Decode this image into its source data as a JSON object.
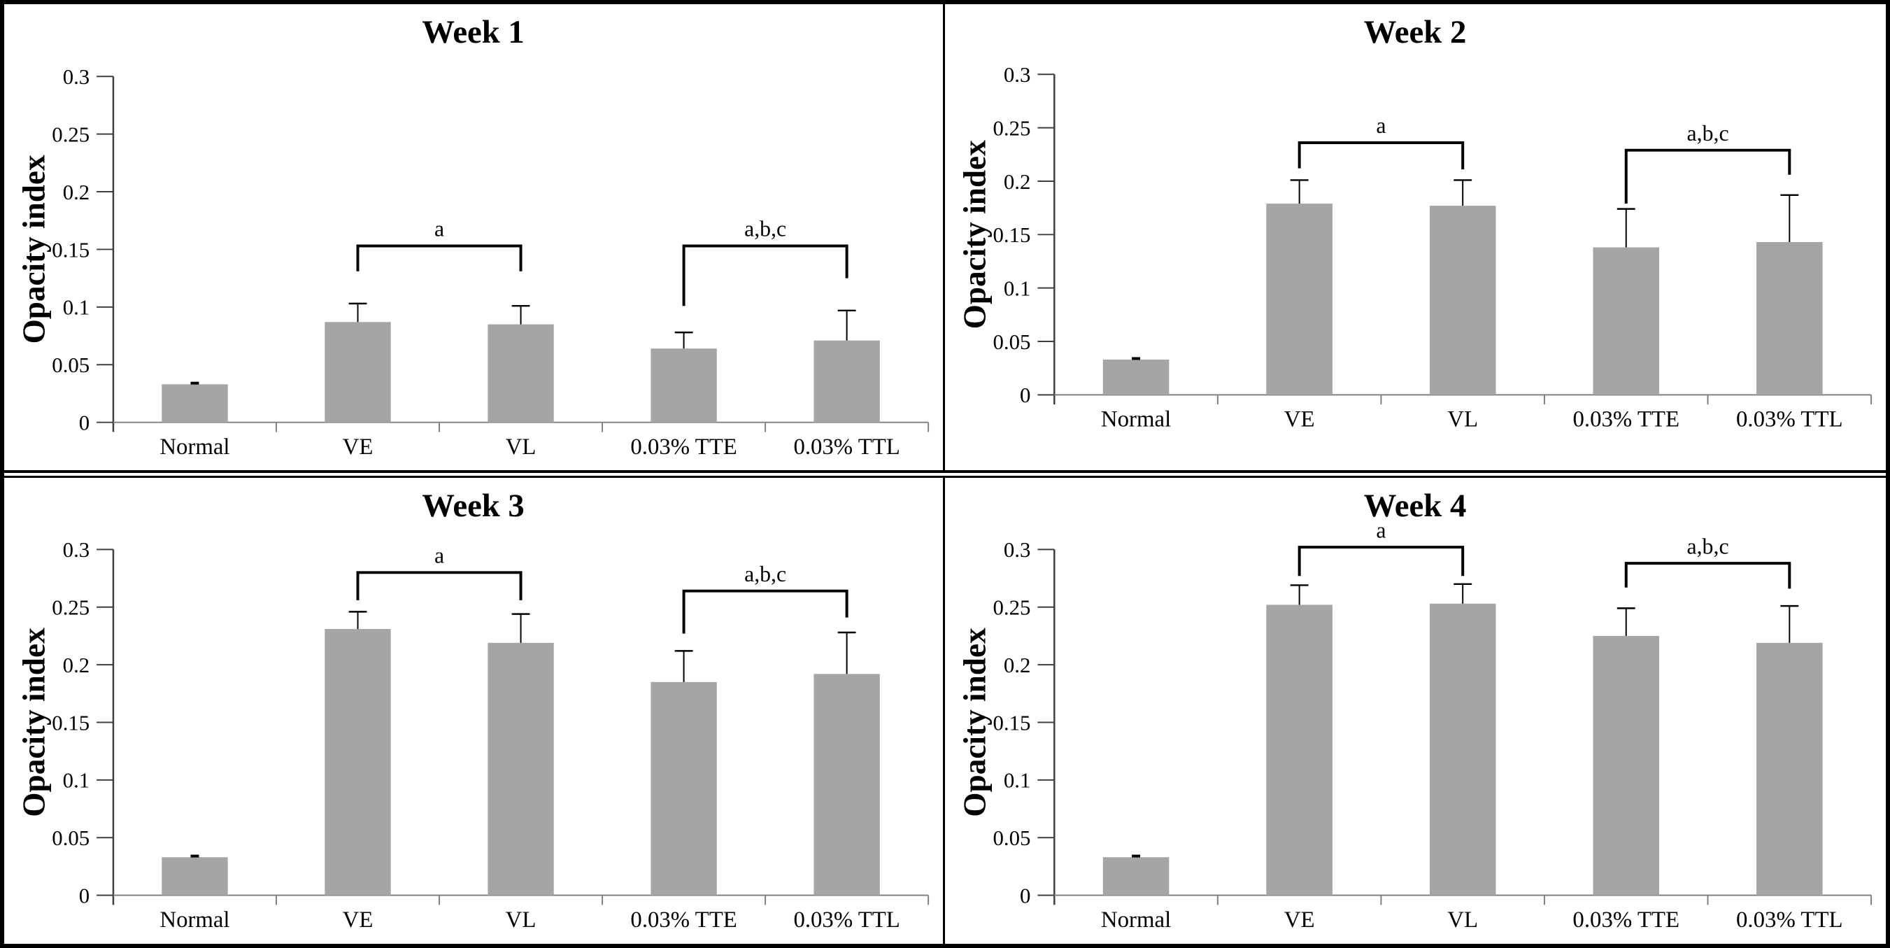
{
  "figure": {
    "background": "#ffffff",
    "frame_color": "#000000",
    "bar_color": "#a5a5a5",
    "x_axis_color": "#808080",
    "y_axis_color": "#3f3f3f",
    "tick_color": "#3f3f3f",
    "error_bar_color": "#000000",
    "bracket_color": "#000000",
    "text_color": "#000000"
  },
  "chart_data": [
    {
      "type": "bar",
      "title": "Week 1",
      "xlabel": "",
      "ylabel": "Opacity index",
      "categories": [
        "Normal",
        "VE",
        "VL",
        "0.03% TTE",
        "0.03% TTL"
      ],
      "values": [
        0.033,
        0.087,
        0.085,
        0.064,
        0.071
      ],
      "errors": [
        0.001,
        0.016,
        0.016,
        0.014,
        0.026
      ],
      "ylim": [
        0,
        0.3
      ],
      "ytick_labels": [
        "0",
        "0.05",
        "0.1",
        "0.15",
        "0.2",
        "0.25",
        "0.3"
      ],
      "grid": false,
      "legend": false,
      "significance_brackets": [
        {
          "label": "a",
          "from_index": 1,
          "to_index": 2,
          "bar_y": 0.153,
          "left_leg_to": 0.131,
          "right_leg_to": 0.131
        },
        {
          "label": "a,b,c",
          "from_index": 3,
          "to_index": 4,
          "bar_y": 0.153,
          "left_leg_to": 0.101,
          "right_leg_to": 0.125
        }
      ]
    },
    {
      "type": "bar",
      "title": "Week 2",
      "xlabel": "",
      "ylabel": "Opacity index",
      "categories": [
        "Normal",
        "VE",
        "VL",
        "0.03% TTE",
        "0.03% TTL"
      ],
      "values": [
        0.033,
        0.179,
        0.177,
        0.138,
        0.143
      ],
      "errors": [
        0.001,
        0.022,
        0.024,
        0.036,
        0.044
      ],
      "ylim": [
        0,
        0.3
      ],
      "ytick_labels": [
        "0",
        "0.05",
        "0.1",
        "0.15",
        "0.2",
        "0.25",
        "0.3"
      ],
      "grid": false,
      "legend": false,
      "significance_brackets": [
        {
          "label": "a",
          "from_index": 1,
          "to_index": 2,
          "bar_y": 0.236,
          "left_leg_to": 0.212,
          "right_leg_to": 0.211
        },
        {
          "label": "a,b,c",
          "from_index": 3,
          "to_index": 4,
          "bar_y": 0.229,
          "left_leg_to": 0.179,
          "right_leg_to": 0.206
        }
      ]
    },
    {
      "type": "bar",
      "title": "Week 3",
      "xlabel": "",
      "ylabel": "Opacity index",
      "categories": [
        "Normal",
        "VE",
        "VL",
        "0.03% TTE",
        "0.03% TTL"
      ],
      "values": [
        0.033,
        0.231,
        0.219,
        0.185,
        0.192
      ],
      "errors": [
        0.001,
        0.015,
        0.025,
        0.027,
        0.036
      ],
      "ylim": [
        0,
        0.3
      ],
      "ytick_labels": [
        "0",
        "0.05",
        "0.1",
        "0.15",
        "0.2",
        "0.25",
        "0.3"
      ],
      "grid": false,
      "legend": false,
      "significance_brackets": [
        {
          "label": "a",
          "from_index": 1,
          "to_index": 2,
          "bar_y": 0.28,
          "left_leg_to": 0.256,
          "right_leg_to": 0.256
        },
        {
          "label": "a,b,c",
          "from_index": 3,
          "to_index": 4,
          "bar_y": 0.264,
          "left_leg_to": 0.227,
          "right_leg_to": 0.241
        }
      ]
    },
    {
      "type": "bar",
      "title": "Week 4",
      "xlabel": "",
      "ylabel": "Opacity index",
      "categories": [
        "Normal",
        "VE",
        "VL",
        "0.03% TTE",
        "0.03% TTL"
      ],
      "values": [
        0.033,
        0.252,
        0.253,
        0.225,
        0.219
      ],
      "errors": [
        0.001,
        0.017,
        0.017,
        0.024,
        0.032
      ],
      "ylim": [
        0,
        0.3
      ],
      "ytick_labels": [
        "0",
        "0.05",
        "0.1",
        "0.15",
        "0.2",
        "0.25",
        "0.3"
      ],
      "grid": false,
      "legend": false,
      "significance_brackets": [
        {
          "label": "a",
          "from_index": 1,
          "to_index": 2,
          "bar_y": 0.302,
          "left_leg_to": 0.277,
          "right_leg_to": 0.277
        },
        {
          "label": "a,b,c",
          "from_index": 3,
          "to_index": 4,
          "bar_y": 0.288,
          "left_leg_to": 0.267,
          "right_leg_to": 0.266
        }
      ]
    }
  ]
}
